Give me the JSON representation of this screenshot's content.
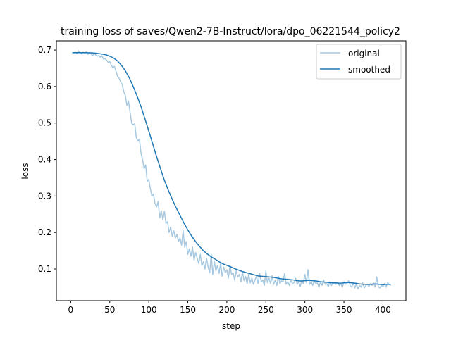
{
  "chart_data": {
    "type": "line",
    "title": "training loss of saves/Qwen2-7B-Instruct/lora/dpo_06221544_policy2",
    "xlabel": "step",
    "ylabel": "loss",
    "xlim": [
      -18.4,
      429.4
    ],
    "ylim": [
      0.0132,
      0.7252
    ],
    "xticks": [
      0,
      50,
      100,
      150,
      200,
      250,
      300,
      350,
      400
    ],
    "yticks": [
      0.1,
      0.2,
      0.3,
      0.4,
      0.5,
      0.6,
      0.7
    ],
    "xtick_labels": [
      "0",
      "50",
      "100",
      "150",
      "200",
      "250",
      "300",
      "350",
      "400"
    ],
    "ytick_labels": [
      "0.1",
      "0.2",
      "0.3",
      "0.4",
      "0.5",
      "0.6",
      "0.7"
    ],
    "grid": false,
    "legend_position": "top-right",
    "series": [
      {
        "name": "original",
        "color": "#a6c8e0",
        "points": [
          [
            2,
            0.693
          ],
          [
            4,
            0.692
          ],
          [
            6,
            0.694
          ],
          [
            8,
            0.69
          ],
          [
            10,
            0.698
          ],
          [
            12,
            0.693
          ],
          [
            14,
            0.689
          ],
          [
            16,
            0.694
          ],
          [
            18,
            0.691
          ],
          [
            20,
            0.695
          ],
          [
            22,
            0.688
          ],
          [
            24,
            0.692
          ],
          [
            26,
            0.69
          ],
          [
            28,
            0.684
          ],
          [
            30,
            0.692
          ],
          [
            32,
            0.686
          ],
          [
            34,
            0.683
          ],
          [
            36,
            0.685
          ],
          [
            38,
            0.68
          ],
          [
            40,
            0.684
          ],
          [
            42,
            0.675
          ],
          [
            44,
            0.677
          ],
          [
            46,
            0.672
          ],
          [
            48,
            0.666
          ],
          [
            50,
            0.668
          ],
          [
            52,
            0.658
          ],
          [
            54,
            0.652
          ],
          [
            56,
            0.655
          ],
          [
            58,
            0.642
          ],
          [
            60,
            0.628
          ],
          [
            62,
            0.623
          ],
          [
            64,
            0.612
          ],
          [
            66,
            0.605
          ],
          [
            68,
            0.585
          ],
          [
            70,
            0.575
          ],
          [
            72,
            0.548
          ],
          [
            74,
            0.56
          ],
          [
            76,
            0.53
          ],
          [
            78,
            0.5
          ],
          [
            80,
            0.495
          ],
          [
            82,
            0.498
          ],
          [
            84,
            0.46
          ],
          [
            86,
            0.452
          ],
          [
            88,
            0.455
          ],
          [
            90,
            0.418
          ],
          [
            92,
            0.4
          ],
          [
            94,
            0.375
          ],
          [
            96,
            0.385
          ],
          [
            98,
            0.34
          ],
          [
            100,
            0.345
          ],
          [
            102,
            0.32
          ],
          [
            104,
            0.3
          ],
          [
            106,
            0.305
          ],
          [
            108,
            0.28
          ],
          [
            110,
            0.27
          ],
          [
            112,
            0.285
          ],
          [
            114,
            0.24
          ],
          [
            116,
            0.26
          ],
          [
            118,
            0.235
          ],
          [
            120,
            0.258
          ],
          [
            122,
            0.225
          ],
          [
            124,
            0.23
          ],
          [
            126,
            0.2
          ],
          [
            128,
            0.215
          ],
          [
            130,
            0.19
          ],
          [
            132,
            0.205
          ],
          [
            134,
            0.185
          ],
          [
            136,
            0.195
          ],
          [
            138,
            0.175
          ],
          [
            140,
            0.185
          ],
          [
            142,
            0.165
          ],
          [
            144,
            0.205
          ],
          [
            146,
            0.16
          ],
          [
            148,
            0.175
          ],
          [
            150,
            0.14
          ],
          [
            152,
            0.155
          ],
          [
            154,
            0.135
          ],
          [
            156,
            0.16
          ],
          [
            158,
            0.125
          ],
          [
            160,
            0.145
          ],
          [
            162,
            0.13
          ],
          [
            164,
            0.115
          ],
          [
            166,
            0.14
          ],
          [
            168,
            0.11
          ],
          [
            170,
            0.12
          ],
          [
            172,
            0.1
          ],
          [
            174,
            0.13
          ],
          [
            176,
            0.105
          ],
          [
            178,
            0.09
          ],
          [
            180,
            0.14
          ],
          [
            182,
            0.085
          ],
          [
            184,
            0.12
          ],
          [
            186,
            0.095
          ],
          [
            188,
            0.11
          ],
          [
            190,
            0.088
          ],
          [
            192,
            0.115
          ],
          [
            194,
            0.08
          ],
          [
            196,
            0.105
          ],
          [
            198,
            0.09
          ],
          [
            200,
            0.098
          ],
          [
            202,
            0.075
          ],
          [
            204,
            0.11
          ],
          [
            206,
            0.085
          ],
          [
            208,
            0.09
          ],
          [
            210,
            0.07
          ],
          [
            212,
            0.095
          ],
          [
            214,
            0.078
          ],
          [
            216,
            0.085
          ],
          [
            218,
            0.065
          ],
          [
            220,
            0.092
          ],
          [
            222,
            0.068
          ],
          [
            224,
            0.08
          ],
          [
            226,
            0.06
          ],
          [
            228,
            0.085
          ],
          [
            230,
            0.062
          ],
          [
            232,
            0.075
          ],
          [
            234,
            0.058
          ],
          [
            236,
            0.07
          ],
          [
            238,
            0.08
          ],
          [
            240,
            0.06
          ],
          [
            242,
            0.088
          ],
          [
            244,
            0.065
          ],
          [
            246,
            0.07
          ],
          [
            248,
            0.055
          ],
          [
            250,
            0.095
          ],
          [
            252,
            0.062
          ],
          [
            254,
            0.075
          ],
          [
            256,
            0.06
          ],
          [
            258,
            0.082
          ],
          [
            260,
            0.058
          ],
          [
            262,
            0.07
          ],
          [
            264,
            0.055
          ],
          [
            266,
            0.08
          ],
          [
            268,
            0.06
          ],
          [
            270,
            0.068
          ],
          [
            272,
            0.065
          ],
          [
            274,
            0.088
          ],
          [
            276,
            0.058
          ],
          [
            278,
            0.065
          ],
          [
            280,
            0.055
          ],
          [
            282,
            0.07
          ],
          [
            284,
            0.06
          ],
          [
            286,
            0.062
          ],
          [
            288,
            0.075
          ],
          [
            290,
            0.058
          ],
          [
            292,
            0.065
          ],
          [
            294,
            0.052
          ],
          [
            296,
            0.068
          ],
          [
            298,
            0.06
          ],
          [
            300,
            0.085
          ],
          [
            302,
            0.062
          ],
          [
            304,
            0.098
          ],
          [
            306,
            0.058
          ],
          [
            308,
            0.065
          ],
          [
            310,
            0.055
          ],
          [
            312,
            0.068
          ],
          [
            314,
            0.06
          ],
          [
            316,
            0.062
          ],
          [
            318,
            0.05
          ],
          [
            320,
            0.065
          ],
          [
            322,
            0.055
          ],
          [
            324,
            0.07
          ],
          [
            326,
            0.058
          ],
          [
            328,
            0.06
          ],
          [
            330,
            0.052
          ],
          [
            332,
            0.065
          ],
          [
            334,
            0.055
          ],
          [
            336,
            0.062
          ],
          [
            338,
            0.06
          ],
          [
            340,
            0.058
          ],
          [
            342,
            0.062
          ],
          [
            344,
            0.055
          ],
          [
            346,
            0.06
          ],
          [
            348,
            0.05
          ],
          [
            350,
            0.065
          ],
          [
            352,
            0.058
          ],
          [
            354,
            0.06
          ],
          [
            356,
            0.068
          ],
          [
            358,
            0.055
          ],
          [
            360,
            0.05
          ],
          [
            362,
            0.062
          ],
          [
            364,
            0.048
          ],
          [
            366,
            0.06
          ],
          [
            368,
            0.045
          ],
          [
            370,
            0.055
          ],
          [
            372,
            0.05
          ],
          [
            374,
            0.062
          ],
          [
            376,
            0.048
          ],
          [
            378,
            0.055
          ],
          [
            380,
            0.058
          ],
          [
            382,
            0.052
          ],
          [
            384,
            0.06
          ],
          [
            386,
            0.055
          ],
          [
            388,
            0.062
          ],
          [
            390,
            0.05
          ],
          [
            392,
            0.078
          ],
          [
            394,
            0.052
          ],
          [
            396,
            0.048
          ],
          [
            398,
            0.055
          ],
          [
            400,
            0.052
          ],
          [
            402,
            0.06
          ],
          [
            404,
            0.05
          ],
          [
            406,
            0.062
          ],
          [
            408,
            0.058
          ],
          [
            410,
            0.055
          ]
        ]
      },
      {
        "name": "smoothed",
        "color": "#1f77b4",
        "points": [
          [
            2,
            0.693
          ],
          [
            10,
            0.693
          ],
          [
            20,
            0.693
          ],
          [
            30,
            0.692
          ],
          [
            40,
            0.689
          ],
          [
            45,
            0.687
          ],
          [
            50,
            0.683
          ],
          [
            55,
            0.678
          ],
          [
            60,
            0.67
          ],
          [
            65,
            0.658
          ],
          [
            70,
            0.643
          ],
          [
            75,
            0.624
          ],
          [
            80,
            0.6
          ],
          [
            85,
            0.574
          ],
          [
            90,
            0.545
          ],
          [
            95,
            0.512
          ],
          [
            100,
            0.478
          ],
          [
            105,
            0.443
          ],
          [
            110,
            0.408
          ],
          [
            115,
            0.375
          ],
          [
            120,
            0.343
          ],
          [
            125,
            0.316
          ],
          [
            130,
            0.291
          ],
          [
            135,
            0.268
          ],
          [
            140,
            0.247
          ],
          [
            145,
            0.226
          ],
          [
            150,
            0.207
          ],
          [
            155,
            0.19
          ],
          [
            160,
            0.175
          ],
          [
            165,
            0.162
          ],
          [
            170,
            0.15
          ],
          [
            175,
            0.141
          ],
          [
            180,
            0.133
          ],
          [
            185,
            0.127
          ],
          [
            190,
            0.12
          ],
          [
            195,
            0.114
          ],
          [
            200,
            0.11
          ],
          [
            205,
            0.106
          ],
          [
            210,
            0.101
          ],
          [
            215,
            0.097
          ],
          [
            220,
            0.093
          ],
          [
            225,
            0.09
          ],
          [
            230,
            0.087
          ],
          [
            235,
            0.084
          ],
          [
            240,
            0.081
          ],
          [
            245,
            0.08
          ],
          [
            250,
            0.079
          ],
          [
            255,
            0.078
          ],
          [
            260,
            0.077
          ],
          [
            265,
            0.075
          ],
          [
            270,
            0.073
          ],
          [
            275,
            0.072
          ],
          [
            280,
            0.071
          ],
          [
            285,
            0.07
          ],
          [
            290,
            0.068
          ],
          [
            295,
            0.067
          ],
          [
            300,
            0.068
          ],
          [
            305,
            0.069
          ],
          [
            310,
            0.068
          ],
          [
            315,
            0.067
          ],
          [
            320,
            0.065
          ],
          [
            325,
            0.064
          ],
          [
            330,
            0.063
          ],
          [
            335,
            0.062
          ],
          [
            340,
            0.062
          ],
          [
            345,
            0.061
          ],
          [
            350,
            0.062
          ],
          [
            355,
            0.063
          ],
          [
            360,
            0.062
          ],
          [
            365,
            0.061
          ],
          [
            370,
            0.059
          ],
          [
            375,
            0.058
          ],
          [
            380,
            0.058
          ],
          [
            385,
            0.058
          ],
          [
            390,
            0.059
          ],
          [
            395,
            0.058
          ],
          [
            400,
            0.057
          ],
          [
            405,
            0.058
          ],
          [
            410,
            0.058
          ]
        ]
      }
    ]
  }
}
